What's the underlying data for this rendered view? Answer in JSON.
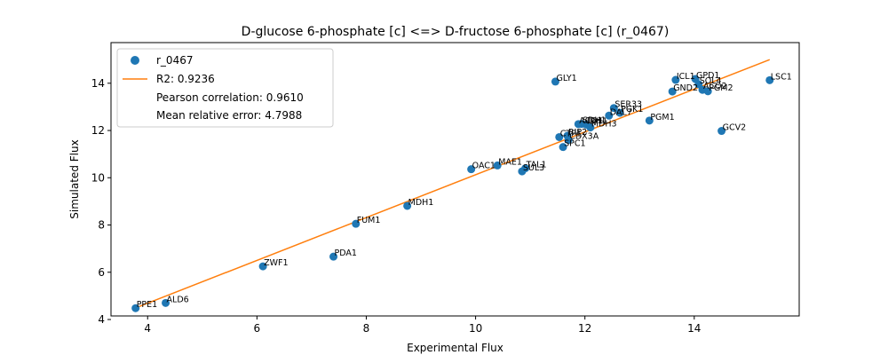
{
  "chart_data": {
    "type": "scatter",
    "title": "D-glucose 6-phosphate [c] <=> D-fructose 6-phosphate [c] (r_0467)",
    "xlabel": "Experimental Flux",
    "ylabel": "Simulated Flux",
    "xlim": [
      3.33,
      15.92
    ],
    "ylim": [
      4.15,
      15.72
    ],
    "xticks": [
      4,
      6,
      8,
      10,
      12,
      14
    ],
    "yticks": [
      4,
      6,
      8,
      10,
      12,
      14
    ],
    "grid": false,
    "legend_position": "top-left",
    "colors": {
      "points": "#1f77b4",
      "fit_line": "#ff7f0e"
    },
    "series": [
      {
        "name": "r_0467",
        "points": [
          {
            "label": "PPE1",
            "x": 3.78,
            "y": 4.48
          },
          {
            "label": "ALD6",
            "x": 4.33,
            "y": 4.7
          },
          {
            "label": "ZWF1",
            "x": 6.11,
            "y": 6.25
          },
          {
            "label": "PDA1",
            "x": 7.4,
            "y": 6.66
          },
          {
            "label": "FUM1",
            "x": 7.81,
            "y": 8.05
          },
          {
            "label": "MDH1",
            "x": 8.75,
            "y": 8.81
          },
          {
            "label": "OAC1",
            "x": 9.92,
            "y": 10.36
          },
          {
            "label": "MAE1",
            "x": 10.4,
            "y": 10.52
          },
          {
            "label": "SUL3",
            "x": 10.85,
            "y": 10.27
          },
          {
            "label": "TAL1",
            "x": 10.91,
            "y": 10.4
          },
          {
            "label": "GLY1",
            "x": 11.46,
            "y": 14.07
          },
          {
            "label": "SPC1",
            "x": 11.6,
            "y": 11.3
          },
          {
            "label": "CTP1",
            "x": 11.53,
            "y": 11.72
          },
          {
            "label": "RIP2",
            "x": 11.68,
            "y": 11.78
          },
          {
            "label": "CDX3A",
            "x": 11.7,
            "y": 11.6
          },
          {
            "label": "ACO1",
            "x": 11.88,
            "y": 12.27
          },
          {
            "label": "SDH1",
            "x": 11.94,
            "y": 12.28
          },
          {
            "label": "IDH1",
            "x": 12.02,
            "y": 12.25
          },
          {
            "label": "MDH3",
            "x": 12.1,
            "y": 12.13
          },
          {
            "label": "DAL7",
            "x": 12.44,
            "y": 12.63
          },
          {
            "label": "SER33",
            "x": 12.53,
            "y": 12.95
          },
          {
            "label": "PGK1",
            "x": 12.64,
            "y": 12.75
          },
          {
            "label": "PGM1",
            "x": 13.18,
            "y": 12.42
          },
          {
            "label": "GND2",
            "x": 13.6,
            "y": 13.65
          },
          {
            "label": "ICL1",
            "x": 13.66,
            "y": 14.14
          },
          {
            "label": "GPD1",
            "x": 14.02,
            "y": 14.18
          },
          {
            "label": "SOL4",
            "x": 14.08,
            "y": 13.96
          },
          {
            "label": "ACO2",
            "x": 14.15,
            "y": 13.72
          },
          {
            "label": "PGM2",
            "x": 14.25,
            "y": 13.66
          },
          {
            "label": "GCV2",
            "x": 14.5,
            "y": 11.98
          },
          {
            "label": "LSC1",
            "x": 15.38,
            "y": 14.13
          }
        ]
      }
    ],
    "fit_line": {
      "x": [
        3.78,
        15.38
      ],
      "y": [
        4.49,
        15.0
      ]
    },
    "legend": {
      "series_name": "r_0467",
      "r2": "R2: 0.9236",
      "pearson": "Pearson correlation: 0.9610",
      "mre": "Mean relative error: 4.7988"
    }
  }
}
